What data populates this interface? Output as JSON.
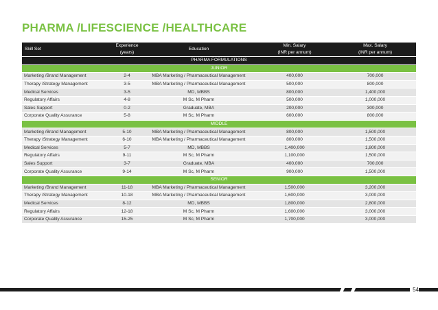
{
  "title": "PHARMA /LIFESCIENCE /HEALTHCARE",
  "headers": {
    "skill": "Skill Set",
    "experience": "Experience\n(years)",
    "education": "Education",
    "min": "Min. Salary\n(INR per annum)",
    "max": "Max. Salary\n(INR per annum)"
  },
  "section_label": "PHARMA FORMULATIONS",
  "groups": [
    {
      "label": "JUNIOR",
      "rows": [
        {
          "skill": "Marketing /Brand Management",
          "exp": "2-4",
          "edu": "MBA Marketing  /  Pharmaceutical Management",
          "min": "400,000",
          "max": "700,000"
        },
        {
          "skill": "Therapy /Strategy Management",
          "exp": "3-5",
          "edu": "MBA Marketing  /  Pharmaceutical Management",
          "min": "500,000",
          "max": "800,000"
        },
        {
          "skill": "Medical Services",
          "exp": "3-5",
          "edu": "MD, MBBS",
          "min": "800,000",
          "max": "1,400,000"
        },
        {
          "skill": "Regulatory Affairs",
          "exp": "4-8",
          "edu": "M Sc, M Pharm",
          "min": "500,000",
          "max": "1,000,000"
        },
        {
          "skill": "Sales Support",
          "exp": "0-2",
          "edu": "Graduate, MBA",
          "min": "200,000",
          "max": "300,000"
        },
        {
          "skill": "Corporate Quality Assurance",
          "exp": "5-8",
          "edu": "M Sc, M Pharm",
          "min": "600,000",
          "max": "800,000"
        }
      ]
    },
    {
      "label": "MIDDLE",
      "rows": [
        {
          "skill": "Marketing /Brand Management",
          "exp": "5-10",
          "edu": "MBA Marketing  /  Pharmaceutical Management",
          "min": "800,000",
          "max": "1,500,000"
        },
        {
          "skill": "Therapy /Strategy Management",
          "exp": "6-10",
          "edu": "MBA Marketing  /  Pharmaceutical Management",
          "min": "800,000",
          "max": "1,500,000"
        },
        {
          "skill": "Medical Services",
          "exp": "5-7",
          "edu": "MD, MBBS",
          "min": "1,400,000",
          "max": "1,800,000"
        },
        {
          "skill": "Regulatory Affairs",
          "exp": "9-11",
          "edu": "M Sc, M Pharm",
          "min": "1,100,000",
          "max": "1,500,000"
        },
        {
          "skill": "Sales Support",
          "exp": "3-7",
          "edu": "Graduate, MBA",
          "min": "400,000",
          "max": "700,000"
        },
        {
          "skill": "Corporate Quality Assurance",
          "exp": "9-14",
          "edu": "M Sc, M Pharm",
          "min": "900,000",
          "max": "1,500,000"
        }
      ]
    },
    {
      "label": "SENIOR",
      "rows": [
        {
          "skill": "Marketing /Brand Management",
          "exp": "11-18",
          "edu": "MBA Marketing  /  Pharmaceutical Management",
          "min": "1,500,000",
          "max": "3,200,000"
        },
        {
          "skill": "Therapy /Strategy Management",
          "exp": "10-18",
          "edu": "MBA Marketing  /  Pharmaceutical Management",
          "min": "1,600,000",
          "max": "3,000,000"
        },
        {
          "skill": "Medical Services",
          "exp": "8-12",
          "edu": "MD, MBBS",
          "min": "1,800,000",
          "max": "2,800,000"
        },
        {
          "skill": "Regulatory Affairs",
          "exp": "12-18",
          "edu": "M Sc, M Pharm",
          "min": "1,600,000",
          "max": "3,000,000"
        },
        {
          "skill": "Corporate Quality Assurance",
          "exp": "15-25",
          "edu": "M Sc, M Pharm",
          "min": "1,700,000",
          "max": "3,000,000"
        }
      ]
    }
  ],
  "page_number": "54",
  "colors": {
    "accent_green": "#7ac143",
    "header_dark": "#1c1c1c"
  }
}
